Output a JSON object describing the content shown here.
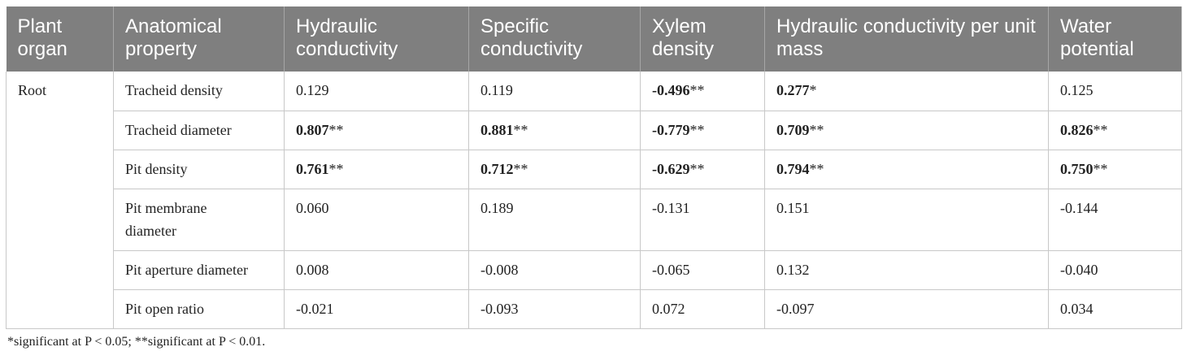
{
  "headers": [
    "Plant organ",
    "Anatomical property",
    "Hydraulic conductivity",
    "Specific conductivity",
    "Xylem density",
    "Hydraulic conductivity per unit mass",
    "Water potential"
  ],
  "organ": "Root",
  "rows": [
    {
      "property": "Tracheid density",
      "cells": [
        {
          "v": "0.129",
          "sig": "",
          "bold": false
        },
        {
          "v": "0.119",
          "sig": "",
          "bold": false
        },
        {
          "v": "-0.496",
          "sig": "**",
          "bold": true
        },
        {
          "v": "0.277",
          "sig": "*",
          "bold": true
        },
        {
          "v": "0.125",
          "sig": "",
          "bold": false
        }
      ]
    },
    {
      "property": "Tracheid diameter",
      "cells": [
        {
          "v": "0.807",
          "sig": "**",
          "bold": true
        },
        {
          "v": "0.881",
          "sig": "**",
          "bold": true
        },
        {
          "v": "-0.779",
          "sig": "**",
          "bold": true
        },
        {
          "v": "0.709",
          "sig": "**",
          "bold": true
        },
        {
          "v": "0.826",
          "sig": "**",
          "bold": true
        }
      ]
    },
    {
      "property": "Pit density",
      "cells": [
        {
          "v": "0.761",
          "sig": "**",
          "bold": true
        },
        {
          "v": "0.712",
          "sig": "**",
          "bold": true
        },
        {
          "v": "-0.629",
          "sig": "**",
          "bold": true
        },
        {
          "v": "0.794",
          "sig": "**",
          "bold": true
        },
        {
          "v": "0.750",
          "sig": "**",
          "bold": true
        }
      ]
    },
    {
      "property": "Pit membrane diameter",
      "cells": [
        {
          "v": "0.060",
          "sig": "",
          "bold": false
        },
        {
          "v": "0.189",
          "sig": "",
          "bold": false
        },
        {
          "v": "-0.131",
          "sig": "",
          "bold": false
        },
        {
          "v": "0.151",
          "sig": "",
          "bold": false
        },
        {
          "v": "-0.144",
          "sig": "",
          "bold": false
        }
      ]
    },
    {
      "property": "Pit aperture diameter",
      "cells": [
        {
          "v": "0.008",
          "sig": "",
          "bold": false
        },
        {
          "v": "-0.008",
          "sig": "",
          "bold": false
        },
        {
          "v": "-0.065",
          "sig": "",
          "bold": false
        },
        {
          "v": "0.132",
          "sig": "",
          "bold": false
        },
        {
          "v": "-0.040",
          "sig": "",
          "bold": false
        }
      ]
    },
    {
      "property": "Pit open ratio",
      "cells": [
        {
          "v": "-0.021",
          "sig": "",
          "bold": false
        },
        {
          "v": "-0.093",
          "sig": "",
          "bold": false
        },
        {
          "v": "0.072",
          "sig": "",
          "bold": false
        },
        {
          "v": "-0.097",
          "sig": "",
          "bold": false
        },
        {
          "v": "0.034",
          "sig": "",
          "bold": false
        }
      ]
    }
  ],
  "footnote": "*significant at P < 0.05; **significant at P < 0.01."
}
